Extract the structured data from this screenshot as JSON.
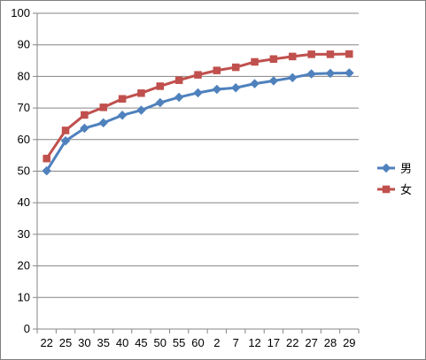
{
  "chart_data": {
    "type": "line",
    "title": "",
    "xlabel": "",
    "ylabel": "",
    "categories": [
      "22",
      "25",
      "30",
      "35",
      "40",
      "45",
      "50",
      "55",
      "60",
      "2",
      "7",
      "12",
      "17",
      "22",
      "27",
      "28",
      "29"
    ],
    "ylim": [
      0,
      100
    ],
    "yticks": [
      0,
      10,
      20,
      30,
      40,
      50,
      60,
      70,
      80,
      90,
      100
    ],
    "grid": "horizontal",
    "legend_position": "right",
    "series": [
      {
        "name": "男",
        "color": "#4f81bd",
        "marker": "diamond",
        "values": [
          50.1,
          59.6,
          63.6,
          65.3,
          67.7,
          69.3,
          71.7,
          73.4,
          74.8,
          75.9,
          76.4,
          77.7,
          78.6,
          79.6,
          80.8,
          81.0,
          81.1
        ]
      },
      {
        "name": "女",
        "color": "#c0504d",
        "marker": "square",
        "values": [
          54.0,
          62.9,
          67.8,
          70.2,
          72.9,
          74.7,
          76.9,
          78.8,
          80.5,
          81.9,
          82.9,
          84.6,
          85.5,
          86.3,
          87.0,
          87.0,
          87.1
        ]
      }
    ]
  }
}
